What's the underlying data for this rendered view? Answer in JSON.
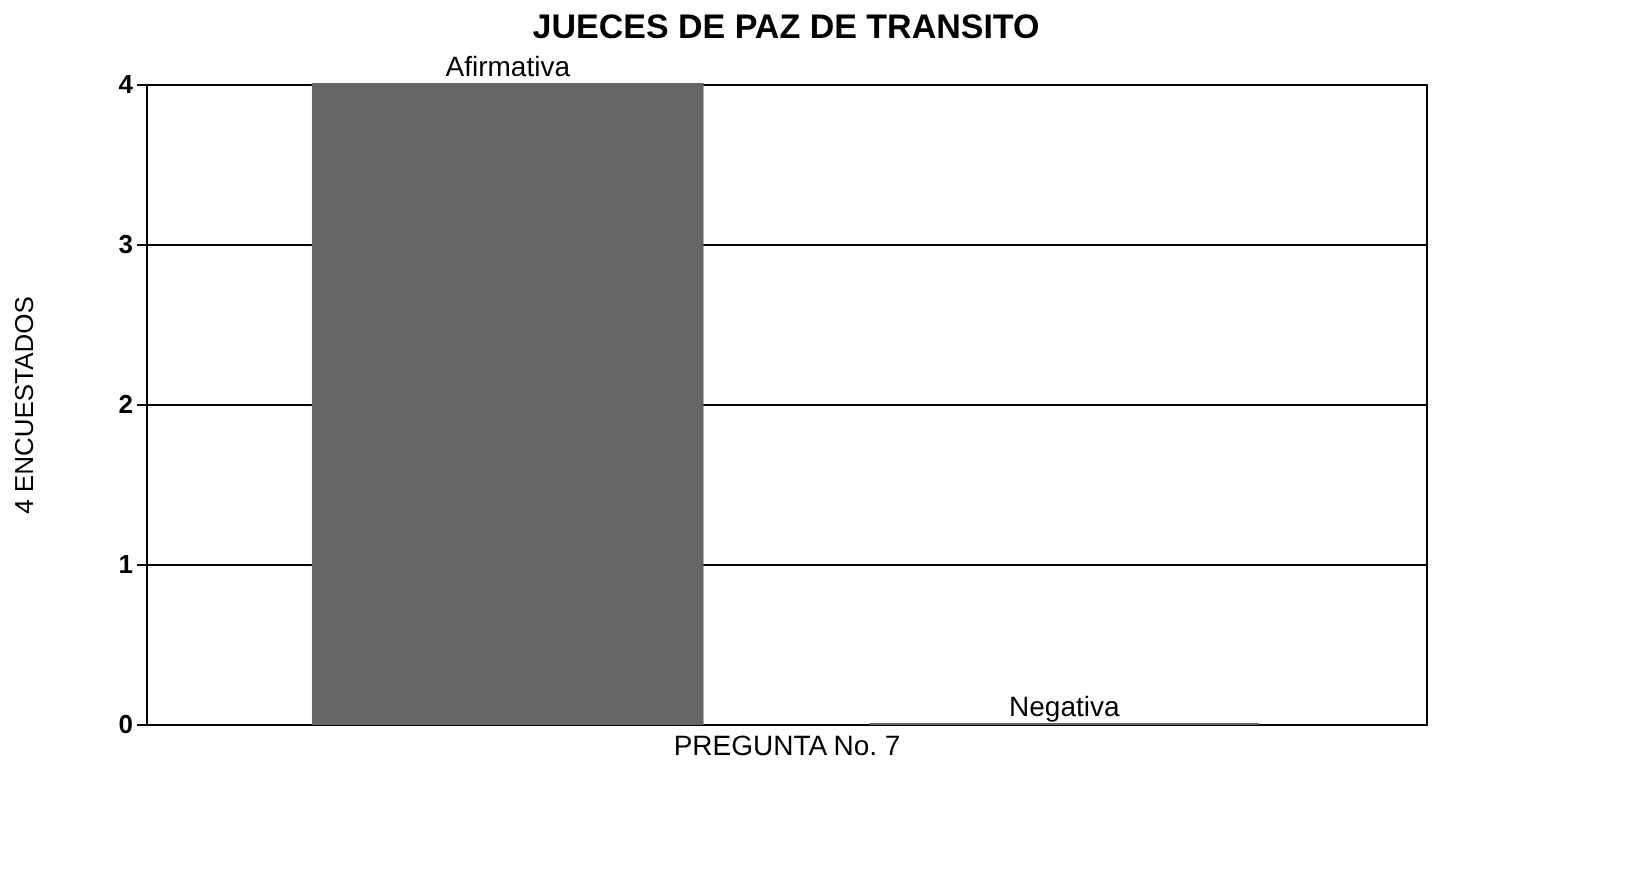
{
  "chart_data": {
    "type": "bar",
    "title": "JUECES DE PAZ DE TRANSITO",
    "xlabel": "PREGUNTA No. 7",
    "ylabel": "4 ENCUESTADOS",
    "categories": [
      "Afirmativa",
      "Negativa"
    ],
    "values": [
      4,
      0
    ],
    "color": "#666666",
    "ylim": [
      0,
      4
    ],
    "yticks": [
      0,
      1,
      2,
      3,
      4
    ],
    "grid": "y"
  }
}
